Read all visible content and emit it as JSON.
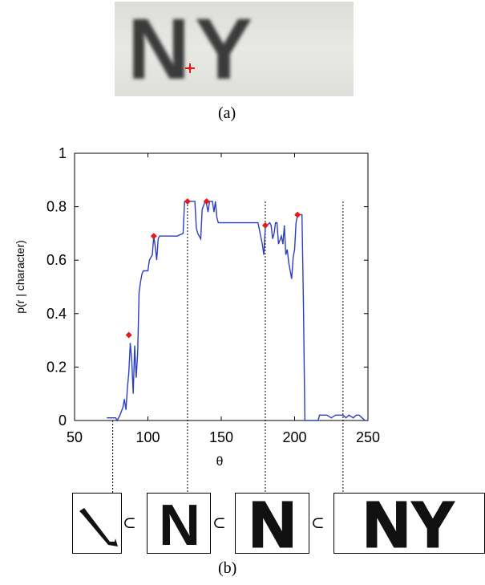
{
  "photo": {
    "letters": "NY",
    "marker_color": "#e41a1c"
  },
  "captions": {
    "a": "(a)",
    "b": "(b)"
  },
  "chart_data": {
    "type": "line",
    "title": "",
    "xlabel": "θ",
    "ylabel": "p(r | character)",
    "xlim": [
      50,
      250
    ],
    "ylim": [
      0,
      1
    ],
    "xticks": [
      "50",
      "100",
      "150",
      "200",
      "250"
    ],
    "yticks": [
      "0",
      "0.2",
      "0.4",
      "0.6",
      "0.8",
      "1"
    ],
    "line_color": "#2a3fc4",
    "marker_color": "#e41a1c",
    "grid": false,
    "series": [
      {
        "x": [
          72,
          78,
          79,
          81,
          83,
          84,
          85,
          86,
          87,
          88,
          89,
          90,
          91,
          92,
          93,
          94,
          95,
          96,
          97,
          100,
          101,
          103,
          104,
          105,
          106,
          107,
          108,
          110,
          115,
          120,
          124,
          125,
          126,
          128,
          130,
          132,
          133,
          134,
          136,
          137,
          139,
          140,
          141,
          142,
          144,
          145,
          146,
          147,
          148,
          150,
          152,
          155,
          160,
          165,
          170,
          175,
          178,
          179,
          180,
          181,
          183,
          184,
          185,
          186,
          187,
          188,
          189,
          191,
          192,
          193,
          194,
          195,
          196,
          197,
          198,
          199,
          200,
          201,
          202,
          203,
          204,
          205,
          206,
          207,
          210,
          214,
          216,
          217,
          218,
          219,
          220,
          222,
          225,
          228,
          230,
          233,
          235,
          237,
          240,
          242,
          244,
          246,
          248,
          250
        ],
        "y": [
          0.01,
          0.01,
          0.0,
          0.02,
          0.05,
          0.08,
          0.04,
          0.12,
          0.18,
          0.29,
          0.22,
          0.1,
          0.28,
          0.16,
          0.25,
          0.48,
          0.52,
          0.55,
          0.56,
          0.56,
          0.6,
          0.62,
          0.69,
          0.65,
          0.6,
          0.68,
          0.69,
          0.69,
          0.69,
          0.69,
          0.7,
          0.82,
          0.82,
          0.82,
          0.82,
          0.82,
          0.72,
          0.7,
          0.68,
          0.79,
          0.82,
          0.81,
          0.78,
          0.82,
          0.82,
          0.78,
          0.82,
          0.76,
          0.74,
          0.74,
          0.74,
          0.74,
          0.74,
          0.74,
          0.74,
          0.74,
          0.66,
          0.62,
          0.72,
          0.73,
          0.74,
          0.73,
          0.68,
          0.7,
          0.74,
          0.74,
          0.66,
          0.69,
          0.66,
          0.73,
          0.62,
          0.64,
          0.59,
          0.56,
          0.53,
          0.61,
          0.64,
          0.74,
          0.77,
          0.77,
          0.77,
          0.77,
          0.44,
          0.0,
          0.0,
          0.0,
          0.0,
          0.02,
          0.02,
          0.02,
          0.02,
          0.02,
          0.01,
          0.02,
          0.02,
          0.02,
          0.01,
          0.02,
          0.01,
          0.02,
          0.02,
          0.01,
          0.0,
          0.0
        ]
      }
    ],
    "peaks": [
      {
        "x": 87,
        "y": 0.32
      },
      {
        "x": 104,
        "y": 0.69
      },
      {
        "x": 127,
        "y": 0.82
      },
      {
        "x": 140,
        "y": 0.82
      },
      {
        "x": 180,
        "y": 0.73
      },
      {
        "x": 202,
        "y": 0.77
      }
    ],
    "dashed_links_x": [
      76,
      127,
      180,
      233
    ]
  },
  "glyphs": {
    "subset_symbol": "⊂",
    "labels": [
      "",
      "N",
      "N",
      "NY"
    ]
  }
}
